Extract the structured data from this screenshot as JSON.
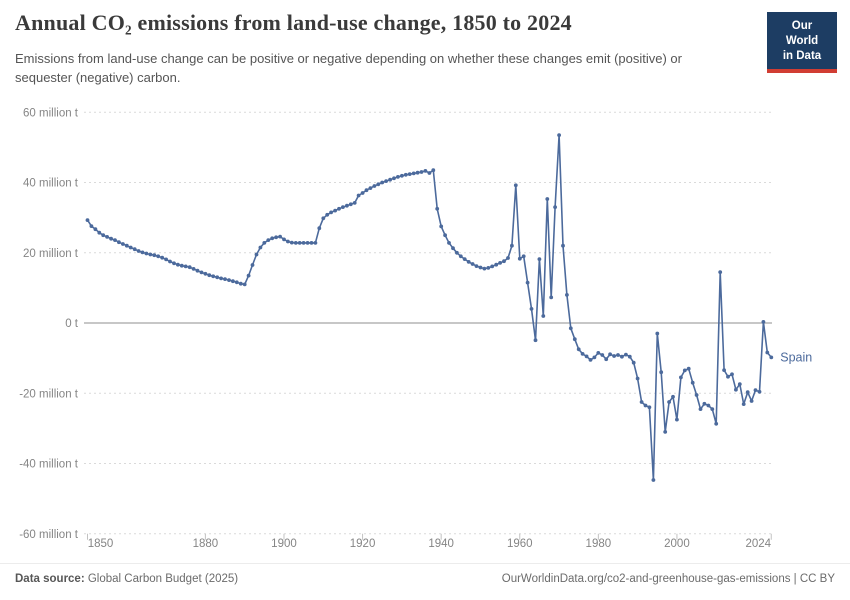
{
  "header": {
    "title": "Annual CO₂ emissions from land-use change, 1850 to 2024",
    "subtitle": "Emissions from land-use change can be positive or negative depending on whether these changes emit (positive) or sequester (negative) carbon.",
    "logo_line1": "Our World",
    "logo_line2": "in Data",
    "logo_bg": "#1d3d63",
    "logo_stripe": "#d13d33"
  },
  "footer": {
    "datasource_label": "Data source:",
    "datasource_value": " Global Carbon Budget (2025)",
    "credit": "OurWorldinData.org/co2-and-greenhouse-gas-emissions | CC BY"
  },
  "chart_data": {
    "type": "line",
    "title": "Annual CO₂ emissions from land-use change, 1850 to 2024",
    "entity_label": "Spain",
    "line_color": "#4C6A9C",
    "grid": "dashed-horizontal",
    "zero_line": true,
    "xlim": [
      1850,
      2024
    ],
    "ylim": [
      -60,
      60
    ],
    "x_ticks": [
      1850,
      1880,
      1900,
      1920,
      1940,
      1960,
      1980,
      2000,
      2024
    ],
    "y_ticks": [
      {
        "v": 60,
        "label": "60 million t"
      },
      {
        "v": 40,
        "label": "40 million t"
      },
      {
        "v": 20,
        "label": "20 million t"
      },
      {
        "v": 0,
        "label": "0 t"
      },
      {
        "v": -20,
        "label": "-20 million t"
      },
      {
        "v": -40,
        "label": "-40 million t"
      },
      {
        "v": -60,
        "label": "-60 million t"
      }
    ],
    "unit": "million t",
    "series": [
      {
        "name": "Spain",
        "x_start": 1850,
        "x_step": 1,
        "values": [
          29.3,
          27.6,
          26.7,
          25.7,
          25.0,
          24.5,
          24.0,
          23.6,
          23.0,
          22.5,
          22.0,
          21.5,
          21.0,
          20.5,
          20.1,
          19.8,
          19.5,
          19.3,
          19.0,
          18.6,
          18.1,
          17.5,
          17.0,
          16.6,
          16.3,
          16.1,
          15.9,
          15.4,
          14.9,
          14.4,
          14.0,
          13.6,
          13.3,
          13.0,
          12.7,
          12.5,
          12.2,
          11.9,
          11.6,
          11.2,
          11.0,
          13.5,
          16.5,
          19.5,
          21.5,
          22.8,
          23.6,
          24.1,
          24.4,
          24.6,
          23.8,
          23.2,
          22.9,
          22.8,
          22.8,
          22.8,
          22.8,
          22.8,
          22.8,
          27.0,
          29.8,
          30.8,
          31.5,
          32.0,
          32.5,
          33.0,
          33.4,
          33.8,
          34.2,
          36.3,
          37.0,
          37.8,
          38.4,
          39.0,
          39.5,
          40.0,
          40.4,
          40.8,
          41.2,
          41.6,
          41.9,
          42.2,
          42.4,
          42.6,
          42.8,
          43.0,
          43.3,
          42.7,
          43.5,
          32.5,
          27.5,
          25.0,
          22.8,
          21.3,
          20.0,
          19.0,
          18.2,
          17.4,
          16.8,
          16.2,
          15.8,
          15.5,
          15.7,
          16.1,
          16.6,
          17.1,
          17.6,
          18.5,
          22.0,
          39.2,
          18.3,
          19.0,
          11.5,
          4.0,
          -4.9,
          18.2,
          2.0,
          35.3,
          7.3,
          33.0,
          53.5,
          22.0,
          8.0,
          -1.5,
          -4.6,
          -7.5,
          -8.8,
          -9.5,
          -10.5,
          -9.8,
          -8.5,
          -9.1,
          -10.3,
          -8.9,
          -9.4,
          -9.1,
          -9.6,
          -9.0,
          -9.6,
          -11.3,
          -15.8,
          -22.5,
          -23.5,
          -24.0,
          -44.7,
          -3.0,
          -14.0,
          -31.0,
          -22.5,
          -21.0,
          -27.5,
          -15.5,
          -13.5,
          -13.0,
          -17.0,
          -20.5,
          -24.5,
          -23.0,
          -23.5,
          -24.5,
          -28.7,
          14.5,
          -13.4,
          -15.3,
          -14.6,
          -19.0,
          -17.4,
          -23.1,
          -19.7,
          -22.2,
          -19.1,
          -19.6,
          0.3,
          -8.4,
          -9.8
        ]
      }
    ]
  }
}
